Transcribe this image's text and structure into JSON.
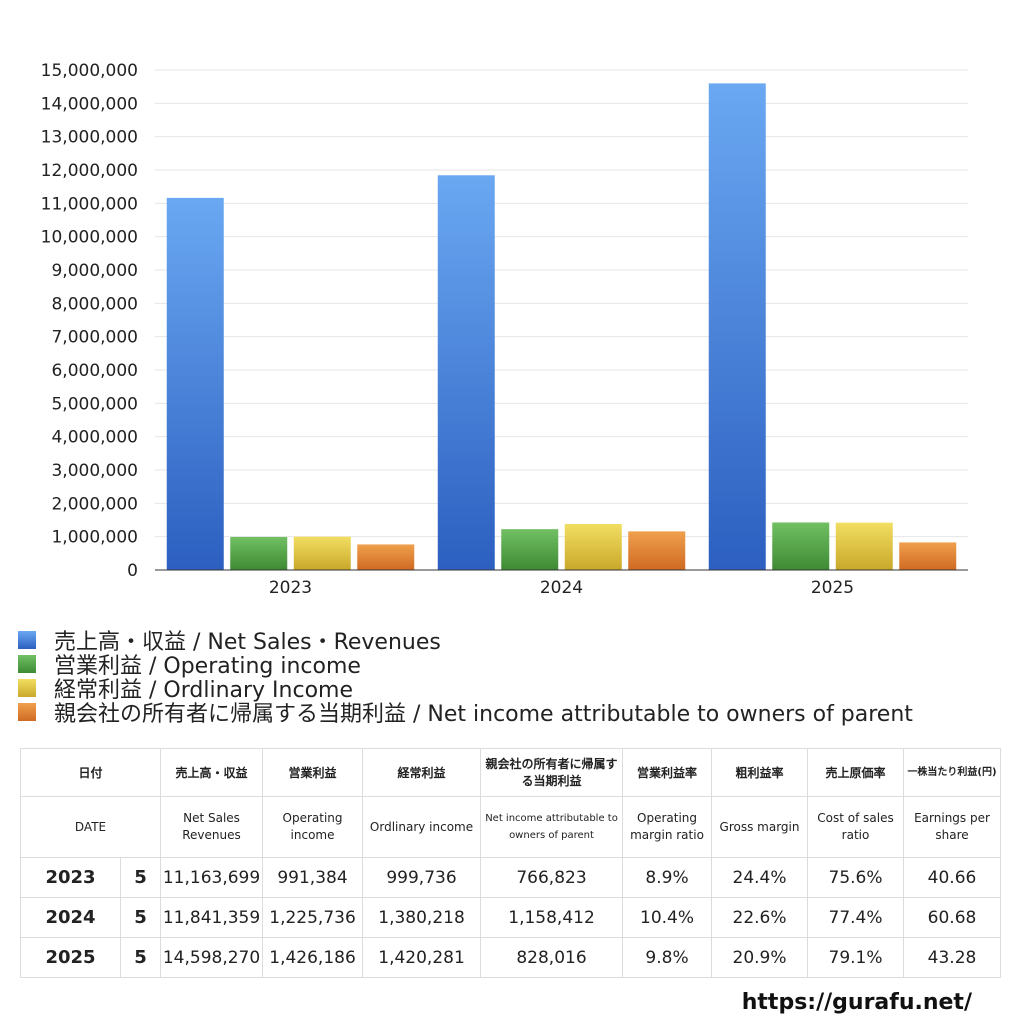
{
  "chart_data": {
    "type": "bar",
    "categories": [
      "2023",
      "2024",
      "2025"
    ],
    "ylim": [
      0,
      15000000
    ],
    "yticks": [
      0,
      1000000,
      2000000,
      3000000,
      4000000,
      5000000,
      6000000,
      7000000,
      8000000,
      9000000,
      10000000,
      11000000,
      12000000,
      13000000,
      14000000,
      15000000
    ],
    "ytick_labels": [
      "0",
      "1,000,000",
      "2,000,000",
      "3,000,000",
      "4,000,000",
      "5,000,000",
      "6,000,000",
      "7,000,000",
      "8,000,000",
      "9,000,000",
      "10,000,000",
      "11,000,000",
      "12,000,000",
      "13,000,000",
      "14,000,000",
      "15,000,000"
    ],
    "grid": true,
    "legend_position": "bottom",
    "series": [
      {
        "name": "売上高・収益 / Net Sales・Revenues",
        "values": [
          11163699,
          11841359,
          14598270
        ],
        "color": "#3f7fdb"
      },
      {
        "name": "営業利益 / Operating income",
        "values": [
          991384,
          1225736,
          1426186
        ],
        "color": "#52a447"
      },
      {
        "name": "経常利益 / Ordlinary Income",
        "values": [
          999736,
          1380218,
          1420281
        ],
        "color": "#dcc23a"
      },
      {
        "name": "親会社の所有者に帰属する当期利益 / Net income attributable to owners of parent",
        "values": [
          766823,
          1158412,
          828016
        ],
        "color": "#e07d2e"
      }
    ]
  },
  "table": {
    "header_ja": [
      "日付",
      "売上高・収益",
      "営業利益",
      "経常利益",
      "親会社の所有者に帰属する当期利益",
      "営業利益率",
      "粗利益率",
      "売上原価率",
      "一株当たり利益(円)"
    ],
    "header_en": [
      "DATE",
      "Net Sales Revenues",
      "Operating income",
      "Ordlinary income",
      "Net income attributable to owners of parent",
      "Operating margin ratio",
      "Gross margin",
      "Cost of sales ratio",
      "Earnings per share"
    ],
    "rows": [
      {
        "year": "2023",
        "months": "5",
        "sales": "11,163,699",
        "op": "991,384",
        "ord": "999,736",
        "net": "766,823",
        "opm": "8.9%",
        "gm": "24.4%",
        "cos": "75.6%",
        "eps": "40.66"
      },
      {
        "year": "2024",
        "months": "5",
        "sales": "11,841,359",
        "op": "1,225,736",
        "ord": "1,380,218",
        "net": "1,158,412",
        "opm": "10.4%",
        "gm": "22.6%",
        "cos": "77.4%",
        "eps": "60.68"
      },
      {
        "year": "2025",
        "months": "5",
        "sales": "14,598,270",
        "op": "1,426,186",
        "ord": "1,420,281",
        "net": "828,016",
        "opm": "9.8%",
        "gm": "20.9%",
        "cos": "79.1%",
        "eps": "43.28"
      }
    ]
  },
  "source_url": "https://gurafu.net/"
}
